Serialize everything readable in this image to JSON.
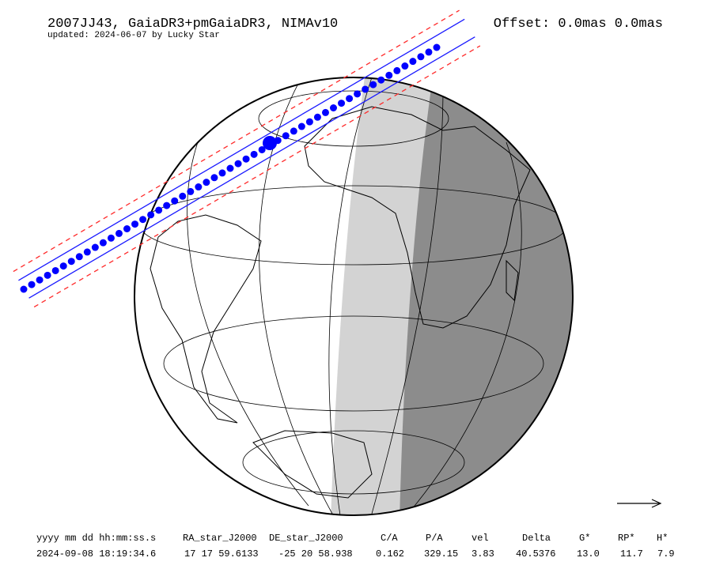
{
  "header": {
    "title": "2007JJ43, GaiaDR3+pmGaiaDR3, NIMAv10",
    "subtitle": "updated: 2024-06-07 by Lucky Star",
    "offset": "Offset: 0.0mas 0.0mas"
  },
  "table": {
    "columns": [
      "yyyy mm dd hh:mm:ss.s",
      "RA_star_J2000",
      "DE_star_J2000",
      "C/A",
      "P/A",
      "vel",
      "Delta",
      "G*",
      "RP*",
      "H*"
    ],
    "rows": [
      [
        "2024-09-08 18:19:34.6",
        "17 17 59.6133",
        "-25 20 58.938",
        "0.162",
        "329.15",
        "3.83",
        "40.5376",
        "13.0",
        "11.7",
        "7.9"
      ]
    ]
  }
}
